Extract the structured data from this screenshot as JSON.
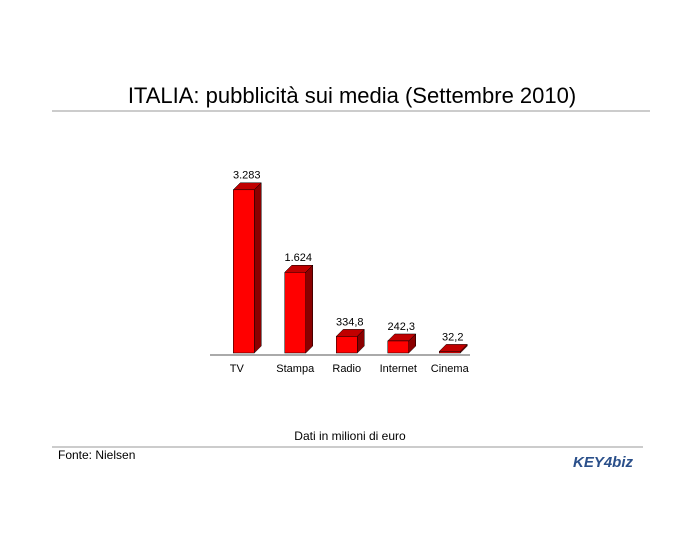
{
  "chart_data": {
    "type": "bar3d",
    "title": "ITALIA: pubblicità sui media (Settembre 2010)",
    "categories": [
      "TV",
      "Stampa",
      "Radio",
      "Internet",
      "Cinema"
    ],
    "values": [
      3283,
      1624,
      334.8,
      242.3,
      32.2
    ],
    "value_labels": [
      "3.283",
      "1.624",
      "334,8",
      "242,3",
      "32,2"
    ],
    "color": "#ff0000",
    "ylim": [
      0,
      3500
    ],
    "note": "Dati in milioni di euro",
    "source": "Fonte: Nielsen",
    "logo": "KEY4biz"
  }
}
